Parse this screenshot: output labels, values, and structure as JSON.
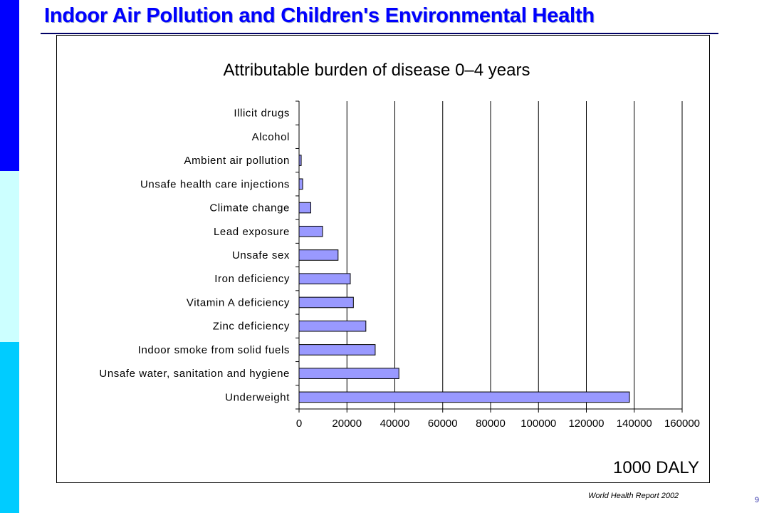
{
  "slide": {
    "title": "Indoor Air Pollution and Children's Environmental Health",
    "source": "World Health Report 2002",
    "page_number": "9"
  },
  "colors": {
    "side_bar": [
      "#0000ff",
      "#ccffff",
      "#00ccff"
    ],
    "title": "#0000ff",
    "bar_fill": "#9999ff",
    "bar_stroke": "#000000"
  },
  "chart_data": {
    "type": "bar",
    "orientation": "horizontal",
    "title": "Attributable burden of disease 0–4 years",
    "xlabel": "1000 DALY",
    "ylabel": "",
    "categories": [
      "Illicit drugs",
      "Alcohol",
      "Ambient air pollution",
      "Unsafe health care injections",
      "Climate change",
      "Lead exposure",
      "Unsafe sex",
      "Iron deficiency",
      "Vitamin A deficiency",
      "Zinc deficiency",
      "Indoor smoke from solid fuels",
      "Unsafe water, sanitation and hygiene",
      "Underweight"
    ],
    "values": [
      0,
      0,
      900,
      1500,
      4900,
      9800,
      16300,
      21400,
      22700,
      27900,
      31800,
      41700,
      138000
    ],
    "xlim": [
      0,
      160000
    ],
    "xticks": [
      "0",
      "20000",
      "40000",
      "60000",
      "80000",
      "100000",
      "120000",
      "140000",
      "160000"
    ],
    "grid": "vertical",
    "legend": "none"
  }
}
